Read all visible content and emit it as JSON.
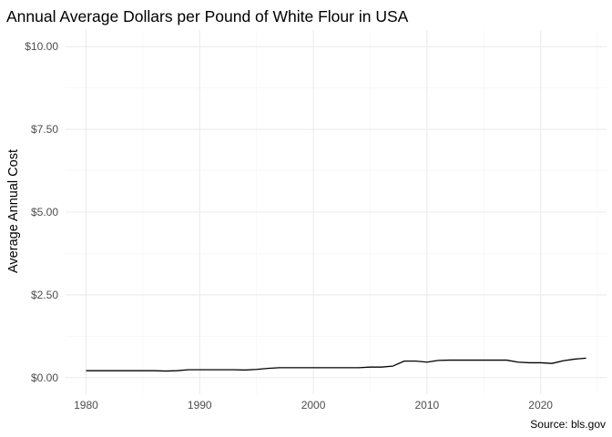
{
  "chart_data": {
    "type": "line",
    "title": "Annual Average Dollars per Pound of White Flour in USA",
    "xlabel": "",
    "ylabel": "Average Annual Cost",
    "caption": "Source: bls.gov",
    "xlim": [
      1978.2,
      2025.8
    ],
    "ylim": [
      -0.5,
      10.5
    ],
    "x_ticks": [
      1980,
      1990,
      2000,
      2010,
      2020
    ],
    "x_tick_labels": [
      "1980",
      "1990",
      "2000",
      "2010",
      "2020"
    ],
    "y_ticks": [
      0,
      2.5,
      5,
      7.5,
      10
    ],
    "y_tick_labels": [
      "$0.00",
      "$2.50",
      "$5.00",
      "$7.50",
      "$10.00"
    ],
    "grid": true,
    "legend": "none",
    "series": [
      {
        "color": "#000000",
        "x": [
          1980,
          1981,
          1982,
          1983,
          1984,
          1985,
          1986,
          1987,
          1988,
          1989,
          1990,
          1991,
          1992,
          1993,
          1994,
          1995,
          1996,
          1997,
          1998,
          1999,
          2000,
          2001,
          2002,
          2003,
          2004,
          2005,
          2006,
          2007,
          2008,
          2009,
          2010,
          2011,
          2012,
          2013,
          2014,
          2015,
          2016,
          2017,
          2018,
          2019,
          2020,
          2021,
          2022,
          2023,
          2024
        ],
        "y": [
          0.21,
          0.21,
          0.21,
          0.21,
          0.21,
          0.21,
          0.21,
          0.2,
          0.21,
          0.24,
          0.24,
          0.24,
          0.24,
          0.24,
          0.23,
          0.25,
          0.28,
          0.3,
          0.3,
          0.3,
          0.3,
          0.3,
          0.3,
          0.3,
          0.3,
          0.32,
          0.32,
          0.35,
          0.5,
          0.5,
          0.47,
          0.52,
          0.53,
          0.53,
          0.53,
          0.53,
          0.53,
          0.53,
          0.47,
          0.45,
          0.45,
          0.43,
          0.51,
          0.56,
          0.59
        ]
      }
    ]
  }
}
